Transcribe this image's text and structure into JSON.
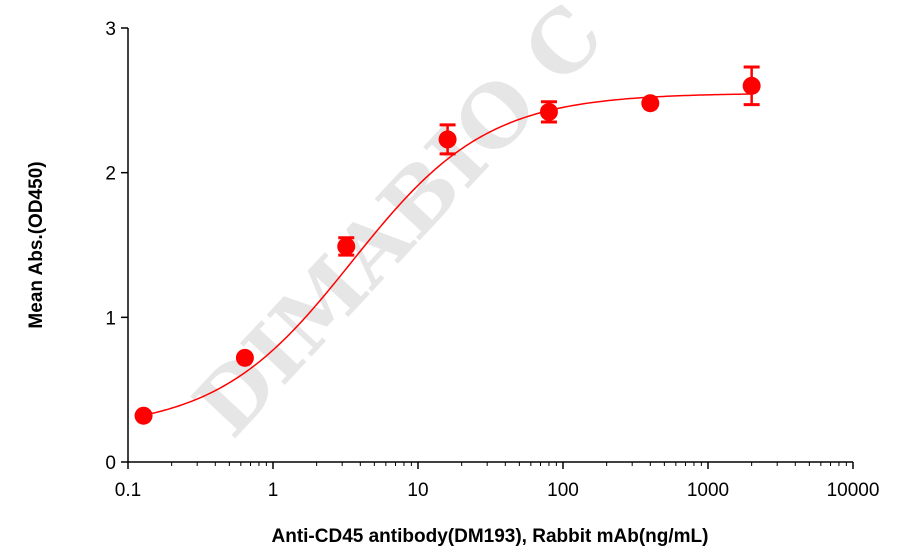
{
  "chart_data": {
    "type": "scatter",
    "watermark": "DIMABIO C",
    "xlabel": "Anti-CD45 antibody(DM193), Rabbit mAb(ng/mL)",
    "ylabel": "Mean Abs.(OD450)",
    "x_scale": "log",
    "xlim": [
      0.1,
      10000
    ],
    "ylim": [
      0,
      3
    ],
    "x_ticks": [
      "0.1",
      "1",
      "10",
      "100",
      "1000",
      "10000"
    ],
    "y_ticks": [
      "0",
      "1",
      "2",
      "3"
    ],
    "grid": false,
    "series": [
      {
        "color": "#ff0000",
        "points": [
          {
            "x": 0.128,
            "y": 0.32,
            "err": 0.02
          },
          {
            "x": 0.64,
            "y": 0.72,
            "err": 0.02
          },
          {
            "x": 3.2,
            "y": 1.49,
            "err": 0.06
          },
          {
            "x": 16,
            "y": 2.23,
            "err": 0.1
          },
          {
            "x": 80,
            "y": 2.42,
            "err": 0.07
          },
          {
            "x": 400,
            "y": 2.48,
            "err": 0.02
          },
          {
            "x": 2000,
            "y": 2.6,
            "err": 0.13
          }
        ],
        "fit_curve": {
          "model": "4PL",
          "bottom": 0.22,
          "top": 2.55,
          "ec50": 3.5,
          "hill": 0.93
        }
      }
    ]
  }
}
